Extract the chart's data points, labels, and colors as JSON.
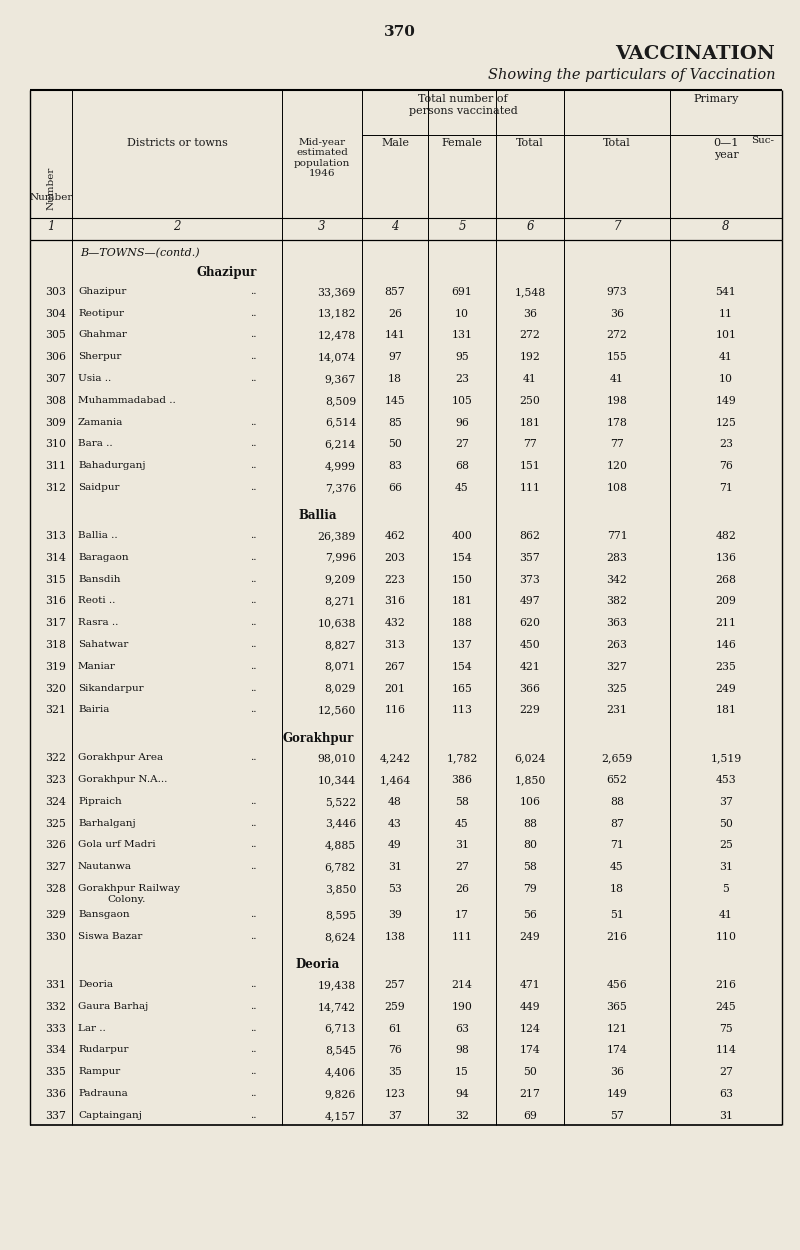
{
  "page_number": "370",
  "title": "VACCINATION",
  "subtitle": "Showing the particulars of Vaccination",
  "bg_color": "#ede8dc",
  "rows": [
    {
      "num": "303",
      "name": "Ghazipur",
      "dots": "..",
      "pop": "33,369",
      "male": "857",
      "female": "691",
      "total": "1,548",
      "ptotal": "973",
      "p01": "541",
      "section": "ghazipur"
    },
    {
      "num": "304",
      "name": "Reotipur",
      "dots": "..",
      "pop": "13,182",
      "male": "26",
      "female": "10",
      "total": "36",
      "ptotal": "36",
      "p01": "11",
      "section": "ghazipur"
    },
    {
      "num": "305",
      "name": "Ghahmar",
      "dots": "..",
      "pop": "12,478",
      "male": "141",
      "female": "131",
      "total": "272",
      "ptotal": "272",
      "p01": "101",
      "section": "ghazipur"
    },
    {
      "num": "306",
      "name": "Sherpur",
      "dots": "..",
      "pop": "14,074",
      "male": "97",
      "female": "95",
      "total": "192",
      "ptotal": "155",
      "p01": "41",
      "section": "ghazipur"
    },
    {
      "num": "307",
      "name": "Usia ..",
      "dots": "..",
      "pop": "9,367",
      "male": "18",
      "female": "23",
      "total": "41",
      "ptotal": "41",
      "p01": "10",
      "section": "ghazipur"
    },
    {
      "num": "308",
      "name": "Muhammadabad ..",
      "dots": "",
      "pop": "8,509",
      "male": "145",
      "female": "105",
      "total": "250",
      "ptotal": "198",
      "p01": "149",
      "section": "ghazipur"
    },
    {
      "num": "309",
      "name": "Zamania",
      "dots": "..",
      "pop": "6,514",
      "male": "85",
      "female": "96",
      "total": "181",
      "ptotal": "178",
      "p01": "125",
      "section": "ghazipur"
    },
    {
      "num": "310",
      "name": "Bara ..",
      "dots": "..",
      "pop": "6,214",
      "male": "50",
      "female": "27",
      "total": "77",
      "ptotal": "77",
      "p01": "23",
      "section": "ghazipur"
    },
    {
      "num": "311",
      "name": "Bahadurganj",
      "dots": "..",
      "pop": "4,999",
      "male": "83",
      "female": "68",
      "total": "151",
      "ptotal": "120",
      "p01": "76",
      "section": "ghazipur"
    },
    {
      "num": "312",
      "name": "Saidpur",
      "dots": "..",
      "pop": "7,376",
      "male": "66",
      "female": "45",
      "total": "111",
      "ptotal": "108",
      "p01": "71",
      "section": "ghazipur"
    },
    {
      "num": "313",
      "name": "Ballia ..",
      "dots": "..",
      "pop": "26,389",
      "male": "462",
      "female": "400",
      "total": "862",
      "ptotal": "771",
      "p01": "482",
      "section": "ballia"
    },
    {
      "num": "314",
      "name": "Baragaon",
      "dots": "..",
      "pop": "7,996",
      "male": "203",
      "female": "154",
      "total": "357",
      "ptotal": "283",
      "p01": "136",
      "section": "ballia"
    },
    {
      "num": "315",
      "name": "Bansdih",
      "dots": "..",
      "pop": "9,209",
      "male": "223",
      "female": "150",
      "total": "373",
      "ptotal": "342",
      "p01": "268",
      "section": "ballia"
    },
    {
      "num": "316",
      "name": "Reoti ..",
      "dots": "..",
      "pop": "8,271",
      "male": "316",
      "female": "181",
      "total": "497",
      "ptotal": "382",
      "p01": "209",
      "section": "ballia"
    },
    {
      "num": "317",
      "name": "Rasra ..",
      "dots": "..",
      "pop": "10,638",
      "male": "432",
      "female": "188",
      "total": "620",
      "ptotal": "363",
      "p01": "211",
      "section": "ballia"
    },
    {
      "num": "318",
      "name": "Sahatwar",
      "dots": "..",
      "pop": "8,827",
      "male": "313",
      "female": "137",
      "total": "450",
      "ptotal": "263",
      "p01": "146",
      "section": "ballia"
    },
    {
      "num": "319",
      "name": "Maniar",
      "dots": "..",
      "pop": "8,071",
      "male": "267",
      "female": "154",
      "total": "421",
      "ptotal": "327",
      "p01": "235",
      "section": "ballia"
    },
    {
      "num": "320",
      "name": "Sikandarpur",
      "dots": "..",
      "pop": "8,029",
      "male": "201",
      "female": "165",
      "total": "366",
      "ptotal": "325",
      "p01": "249",
      "section": "ballia"
    },
    {
      "num": "321",
      "name": "Bairia",
      "dots": "..",
      "pop": "12,560",
      "male": "116",
      "female": "113",
      "total": "229",
      "ptotal": "231",
      "p01": "181",
      "section": "ballia"
    },
    {
      "num": "322",
      "name": "Gorakhpur Area",
      "dots": "..",
      "pop": "98,010",
      "male": "4,242",
      "female": "1,782",
      "total": "6,024",
      "ptotal": "2,659",
      "p01": "1,519",
      "section": "gorakhpur"
    },
    {
      "num": "323",
      "name": "Gorakhpur N.A...",
      "dots": "",
      "pop": "10,344",
      "male": "1,464",
      "female": "386",
      "total": "1,850",
      "ptotal": "652",
      "p01": "453",
      "section": "gorakhpur"
    },
    {
      "num": "324",
      "name": "Pipraich",
      "dots": "..",
      "pop": "5,522",
      "male": "48",
      "female": "58",
      "total": "106",
      "ptotal": "88",
      "p01": "37",
      "section": "gorakhpur"
    },
    {
      "num": "325",
      "name": "Barhalganj",
      "dots": "..",
      "pop": "3,446",
      "male": "43",
      "female": "45",
      "total": "88",
      "ptotal": "87",
      "p01": "50",
      "section": "gorakhpur"
    },
    {
      "num": "326",
      "name": "Gola urf Madri",
      "dots": "..",
      "pop": "4,885",
      "male": "49",
      "female": "31",
      "total": "80",
      "ptotal": "71",
      "p01": "25",
      "section": "gorakhpur"
    },
    {
      "num": "327",
      "name": "Nautanwa",
      "dots": "..",
      "pop": "6,782",
      "male": "31",
      "female": "27",
      "total": "58",
      "ptotal": "45",
      "p01": "31",
      "section": "gorakhpur"
    },
    {
      "num": "328",
      "name": "Gorakhpur Railway",
      "dots": "",
      "pop": "3,850",
      "male": "53",
      "female": "26",
      "total": "79",
      "ptotal": "18",
      "p01": "5",
      "section": "gorakhpur",
      "extra_line": "Colony."
    },
    {
      "num": "329",
      "name": "Bansgaon",
      "dots": "..",
      "pop": "8,595",
      "male": "39",
      "female": "17",
      "total": "56",
      "ptotal": "51",
      "p01": "41",
      "section": "gorakhpur"
    },
    {
      "num": "330",
      "name": "Siswa Bazar",
      "dots": "..",
      "pop": "8,624",
      "male": "138",
      "female": "111",
      "total": "249",
      "ptotal": "216",
      "p01": "110",
      "section": "gorakhpur"
    },
    {
      "num": "331",
      "name": "Deoria",
      "dots": "..",
      "pop": "19,438",
      "male": "257",
      "female": "214",
      "total": "471",
      "ptotal": "456",
      "p01": "216",
      "section": "deoria"
    },
    {
      "num": "332",
      "name": "Gaura Barhaj",
      "dots": "..",
      "pop": "14,742",
      "male": "259",
      "female": "190",
      "total": "449",
      "ptotal": "365",
      "p01": "245",
      "section": "deoria"
    },
    {
      "num": "333",
      "name": "Lar ..",
      "dots": "..",
      "pop": "6,713",
      "male": "61",
      "female": "63",
      "total": "124",
      "ptotal": "121",
      "p01": "75",
      "section": "deoria"
    },
    {
      "num": "334",
      "name": "Rudarpur",
      "dots": "..",
      "pop": "8,545",
      "male": "76",
      "female": "98",
      "total": "174",
      "ptotal": "174",
      "p01": "114",
      "section": "deoria"
    },
    {
      "num": "335",
      "name": "Rampur",
      "dots": "..",
      "pop": "4,406",
      "male": "35",
      "female": "15",
      "total": "50",
      "ptotal": "36",
      "p01": "27",
      "section": "deoria"
    },
    {
      "num": "336",
      "name": "Padrauna",
      "dots": "..",
      "pop": "9,826",
      "male": "123",
      "female": "94",
      "total": "217",
      "ptotal": "149",
      "p01": "63",
      "section": "deoria"
    },
    {
      "num": "337",
      "name": "Captainganj",
      "dots": "..",
      "pop": "4,157",
      "male": "37",
      "female": "32",
      "total": "69",
      "ptotal": "57",
      "p01": "31",
      "section": "deoria"
    }
  ]
}
